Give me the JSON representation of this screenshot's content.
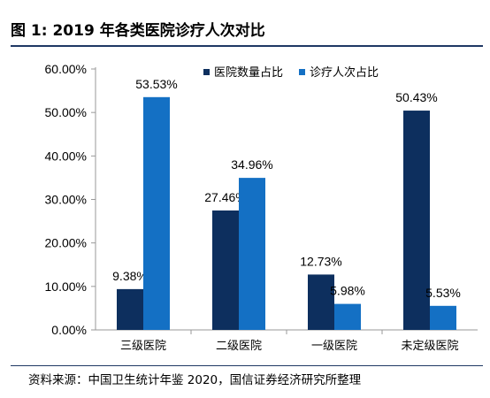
{
  "title": "图 1:  2019 年各类医院诊疗人次对比",
  "source": "资料来源：中国卫生统计年鉴 2020，国信证券经济研究所整理",
  "colors": {
    "series1": "#0d2f5e",
    "series2": "#1470c4",
    "rule": "#1f3864",
    "axis": "#999999"
  },
  "chart_data": {
    "type": "bar",
    "categories": [
      "三级医院",
      "二级医院",
      "一级医院",
      "未定级医院"
    ],
    "series": [
      {
        "name": "医院数量占比",
        "values": [
          9.38,
          27.46,
          12.73,
          50.43
        ],
        "labels": [
          "9.38%",
          "27.46%",
          "12.73%",
          "50.43%"
        ]
      },
      {
        "name": "诊疗人次占比",
        "values": [
          53.53,
          34.96,
          5.98,
          5.53
        ],
        "labels": [
          "53.53%",
          "34.96%",
          "5.98%",
          "5.53%"
        ]
      }
    ],
    "yticks": [
      "0.00%",
      "10.00%",
      "20.00%",
      "30.00%",
      "40.00%",
      "50.00%",
      "60.00%"
    ],
    "ylim": [
      0,
      60
    ],
    "legend": "top-right"
  }
}
